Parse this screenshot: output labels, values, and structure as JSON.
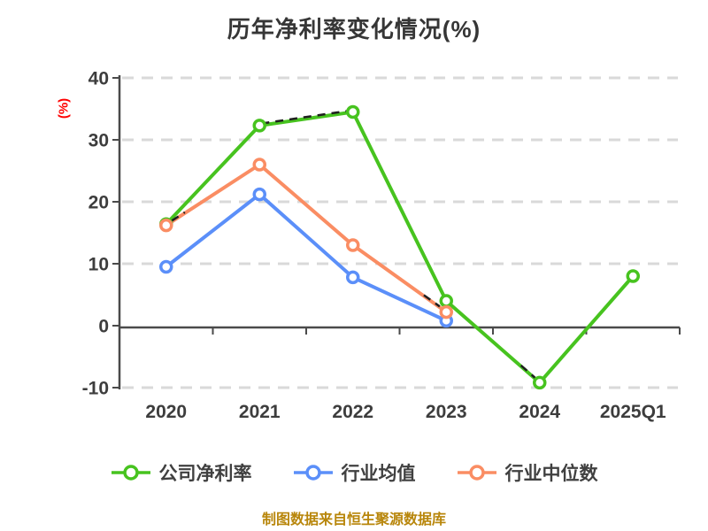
{
  "chart_data": {
    "type": "line",
    "title": "历年净利率变化情况(%)",
    "ylabel": "(%)",
    "categories": [
      "2020",
      "2021",
      "2022",
      "2023",
      "2024",
      "2025Q1"
    ],
    "yticks": [
      40,
      30,
      20,
      10,
      0,
      -10
    ],
    "ylim": [
      -10.5,
      40
    ],
    "grid": "horizontal-dashed",
    "legend_position": "bottom",
    "series": [
      {
        "name": "公司净利率",
        "color": "#47c31f",
        "values": [
          16.4,
          32.3,
          34.5,
          4.0,
          -9.2,
          8.0
        ]
      },
      {
        "name": "行业均值",
        "color": "#5b8ff9",
        "values": [
          9.5,
          21.2,
          7.8,
          0.8,
          null,
          null
        ]
      },
      {
        "name": "行业中位数",
        "color": "#fa8d63",
        "values": [
          16.2,
          26.0,
          13.0,
          2.2,
          null,
          null
        ]
      }
    ]
  },
  "footer": {
    "text": "制图数据来自恒生聚源数据库"
  },
  "colors": {
    "background": "#ffffff",
    "axis": "#4a4a4a",
    "grid": "#d9d9d9",
    "tick_text": "#3d3d3d",
    "title_text": "#363636",
    "ylabel_text": "#ff0000",
    "footer_text": "#b8860b",
    "marker_fill": "#ffffff",
    "dash_artifact": "#1f1f1f"
  }
}
